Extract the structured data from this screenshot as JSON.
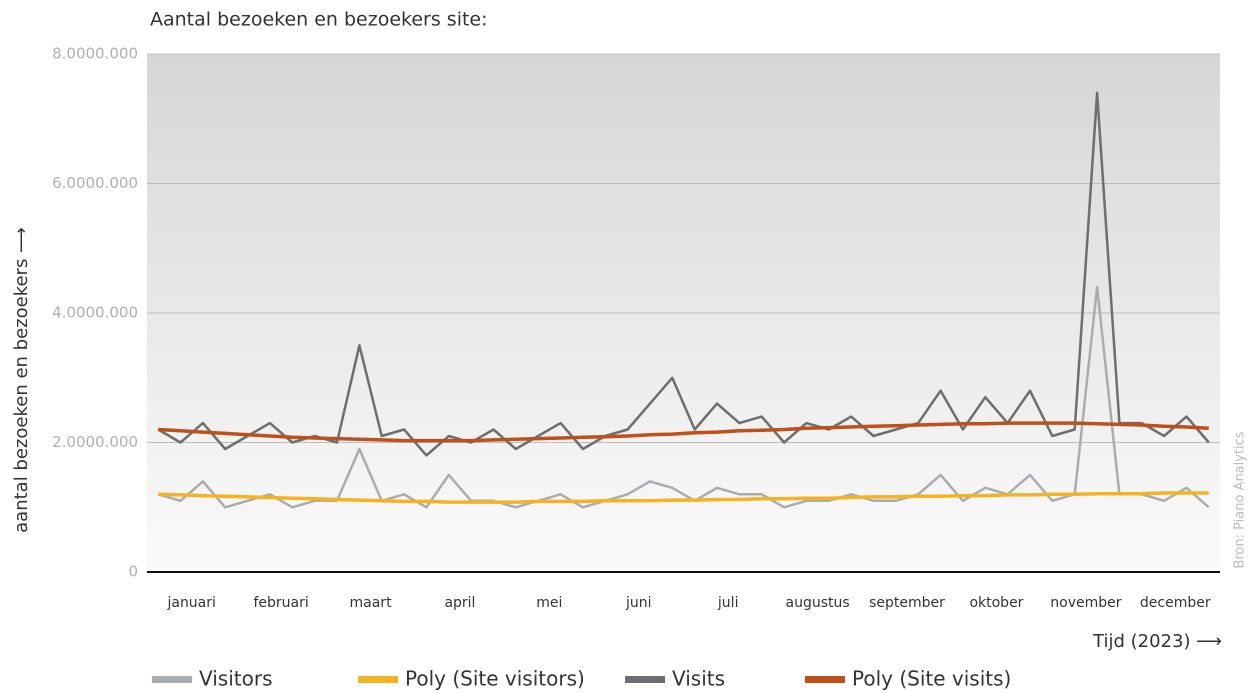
{
  "chart_data": {
    "type": "line",
    "title": "Aantal bezoeken en bezoekers site:",
    "y_label": "aantal bezoeken en bezoekers ⟶",
    "x_label": "Tijd (2023) ⟶",
    "source": "Bron: Piano Analytics",
    "categories": [
      null,
      "januari",
      null,
      null,
      null,
      "februari",
      null,
      null,
      null,
      "maart",
      null,
      null,
      null,
      "april",
      null,
      null,
      null,
      "mei",
      null,
      null,
      null,
      "juni",
      null,
      null,
      null,
      "juli",
      null,
      null,
      null,
      "augustus",
      null,
      null,
      null,
      "september",
      null,
      null,
      null,
      "oktober",
      null,
      null,
      null,
      "november",
      null,
      null,
      null,
      "december",
      null,
      null
    ],
    "ylim": [
      0,
      8000000
    ],
    "yticks": [
      0,
      {
        "value": 2000000,
        "label": "2.0000.000"
      },
      {
        "value": 4000000,
        "label": "4.0000.000"
      },
      {
        "value": 6000000,
        "label": "6.0000.000"
      },
      {
        "value": 8000000,
        "label": "8.0000.000"
      }
    ],
    "grid": true,
    "legend": "bottom",
    "series": [
      {
        "name": "Visitors",
        "color": "#a9acb0",
        "values": [
          1200000,
          1100000,
          1400000,
          1000000,
          1100000,
          1200000,
          1000000,
          1100000,
          1100000,
          1900000,
          1100000,
          1200000,
          1000000,
          1500000,
          1100000,
          1100000,
          1000000,
          1100000,
          1200000,
          1000000,
          1100000,
          1200000,
          1400000,
          1300000,
          1100000,
          1300000,
          1200000,
          1200000,
          1000000,
          1100000,
          1100000,
          1200000,
          1100000,
          1100000,
          1200000,
          1500000,
          1100000,
          1300000,
          1200000,
          1500000,
          1100000,
          1200000,
          4400000,
          1200000,
          1200000,
          1100000,
          1300000,
          1000000
        ]
      },
      {
        "name": "Poly (Site visitors)",
        "color": "#f5b324",
        "values": [
          1200000,
          1190000,
          1180000,
          1170000,
          1160000,
          1150000,
          1140000,
          1130000,
          1120000,
          1110000,
          1100000,
          1090000,
          1090000,
          1080000,
          1080000,
          1080000,
          1080000,
          1090000,
          1090000,
          1090000,
          1100000,
          1100000,
          1100000,
          1110000,
          1110000,
          1120000,
          1120000,
          1130000,
          1130000,
          1140000,
          1140000,
          1150000,
          1160000,
          1160000,
          1170000,
          1170000,
          1180000,
          1180000,
          1190000,
          1190000,
          1200000,
          1200000,
          1210000,
          1210000,
          1210000,
          1220000,
          1220000,
          1220000
        ]
      },
      {
        "name": "Visits",
        "color": "#6d6e71",
        "values": [
          2200000,
          2000000,
          2300000,
          1900000,
          2100000,
          2300000,
          2000000,
          2100000,
          2000000,
          3500000,
          2100000,
          2200000,
          1800000,
          2100000,
          2000000,
          2200000,
          1900000,
          2100000,
          2300000,
          1900000,
          2100000,
          2200000,
          2600000,
          3000000,
          2200000,
          2600000,
          2300000,
          2400000,
          2000000,
          2300000,
          2200000,
          2400000,
          2100000,
          2200000,
          2300000,
          2800000,
          2200000,
          2700000,
          2300000,
          2800000,
          2100000,
          2200000,
          7400000,
          2300000,
          2300000,
          2100000,
          2400000,
          2000000
        ]
      },
      {
        "name": "Poly (Site visits)",
        "color": "#c0501a",
        "values": [
          2200000,
          2180000,
          2160000,
          2140000,
          2120000,
          2100000,
          2080000,
          2070000,
          2060000,
          2050000,
          2040000,
          2030000,
          2030000,
          2030000,
          2030000,
          2040000,
          2050000,
          2060000,
          2070000,
          2080000,
          2090000,
          2100000,
          2120000,
          2130000,
          2150000,
          2160000,
          2180000,
          2190000,
          2200000,
          2220000,
          2230000,
          2240000,
          2250000,
          2260000,
          2270000,
          2280000,
          2290000,
          2290000,
          2300000,
          2300000,
          2300000,
          2300000,
          2290000,
          2280000,
          2270000,
          2250000,
          2240000,
          2220000
        ]
      }
    ]
  }
}
